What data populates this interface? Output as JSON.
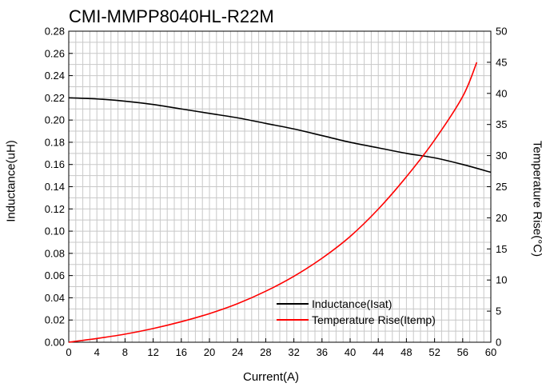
{
  "chart_data": {
    "type": "line",
    "title": "CMI-MMPP8040HL-R22M",
    "xlabel": "Current(A)",
    "ylabel": "Inductance(uH)",
    "y2label": "Temperature Rise(°C)",
    "xlim": [
      0,
      60
    ],
    "ylim": [
      0,
      0.28
    ],
    "y2lim": [
      0,
      50
    ],
    "xticks": [
      0,
      4,
      8,
      12,
      16,
      20,
      24,
      28,
      32,
      36,
      40,
      44,
      48,
      52,
      56,
      60
    ],
    "yticks": [
      0.0,
      0.02,
      0.04,
      0.06,
      0.08,
      0.1,
      0.12,
      0.14,
      0.16,
      0.18,
      0.2,
      0.22,
      0.24,
      0.26,
      0.28
    ],
    "y2ticks": [
      0,
      5,
      10,
      15,
      20,
      25,
      30,
      35,
      40,
      45,
      50
    ],
    "grid": true,
    "legend": "bottom-right",
    "series": [
      {
        "name": "Inductance(Isat)",
        "axis": "left",
        "color": "#000000",
        "x": [
          0,
          4,
          8,
          12,
          16,
          20,
          24,
          28,
          32,
          36,
          40,
          44,
          48,
          52,
          56,
          60
        ],
        "values": [
          0.22,
          0.219,
          0.217,
          0.214,
          0.21,
          0.206,
          0.202,
          0.197,
          0.192,
          0.186,
          0.18,
          0.175,
          0.17,
          0.166,
          0.16,
          0.153
        ]
      },
      {
        "name": "Temperature Rise(Itemp)",
        "axis": "right",
        "color": "#ff0000",
        "x": [
          0,
          4,
          8,
          12,
          16,
          20,
          24,
          28,
          32,
          36,
          40,
          44,
          48,
          52,
          56,
          58
        ],
        "values": [
          0,
          0.6,
          1.3,
          2.2,
          3.3,
          4.6,
          6.2,
          8.2,
          10.6,
          13.5,
          17.0,
          21.4,
          26.6,
          32.5,
          39.5,
          45.0
        ]
      }
    ]
  }
}
